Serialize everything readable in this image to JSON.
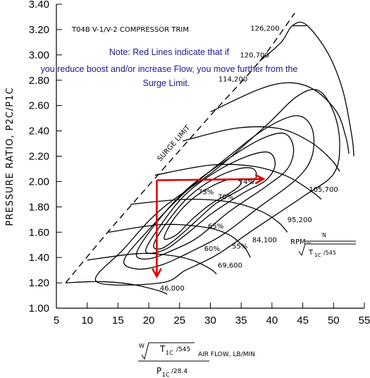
{
  "chart_data": {
    "type": "line",
    "title": "T04B V-1/V-2 COMPRESSOR TRIM",
    "note_lines": [
      "Note: Red Lines indicate that if",
      "you reduce boost and/or increase Flow, you move further from the",
      "Surge Limit."
    ],
    "ylabel": "PRESSURE RATIO, P2C/P1C",
    "xlabel": {
      "num_w": "W",
      "num_t": "T",
      "num_t_sub": "1C",
      "num_div": "/545",
      "units": "AIR FLOW, LB/MIN",
      "den_p": "P",
      "den_p_sub": "1C",
      "den_div": "/28.4"
    },
    "xlim": [
      5,
      55
    ],
    "ylim": [
      1.0,
      3.4
    ],
    "x_ticks": [
      "5",
      "10",
      "15",
      "20",
      "25",
      "30",
      "35",
      "40",
      "45",
      "50",
      "55"
    ],
    "y_ticks": [
      "1.00",
      "1.20",
      "1.40",
      "1.60",
      "1.80",
      "2.00",
      "2.20",
      "2.40",
      "2.60",
      "2.80",
      "3.00",
      "3.20",
      "3.40"
    ],
    "surge_limit": {
      "label": "SURGE LIMIT",
      "points": [
        [
          6.5,
          1.2
        ],
        [
          13,
          1.58
        ],
        [
          20,
          1.97
        ],
        [
          30,
          2.52
        ],
        [
          38,
          2.95
        ],
        [
          43.7,
          3.33
        ]
      ]
    },
    "speed_lines": [
      {
        "label": "46,000",
        "points": [
          [
            6.5,
            1.2
          ],
          [
            12,
            1.21
          ],
          [
            17,
            1.19
          ],
          [
            21.5,
            1.14
          ],
          [
            23,
            1.11
          ]
        ]
      },
      {
        "label": "69,600",
        "points": [
          [
            10,
            1.38
          ],
          [
            18,
            1.43
          ],
          [
            23,
            1.42
          ],
          [
            27,
            1.38
          ],
          [
            30,
            1.31
          ],
          [
            31,
            1.27
          ]
        ]
      },
      {
        "label": "84,100",
        "points": [
          [
            13.5,
            1.6
          ],
          [
            22,
            1.66
          ],
          [
            29,
            1.64
          ],
          [
            33,
            1.58
          ],
          [
            35.5,
            1.48
          ],
          [
            36.5,
            1.4
          ]
        ]
      },
      {
        "label": "95,200",
        "points": [
          [
            17,
            1.82
          ],
          [
            26,
            1.86
          ],
          [
            33,
            1.84
          ],
          [
            38,
            1.77
          ],
          [
            41,
            1.68
          ],
          [
            42.5,
            1.6
          ]
        ]
      },
      {
        "label": "105,700",
        "points": [
          [
            21,
            2.05
          ],
          [
            30,
            2.13
          ],
          [
            37,
            2.12
          ],
          [
            42.5,
            2.04
          ],
          [
            46.5,
            1.92
          ],
          [
            48,
            1.86
          ]
        ]
      },
      {
        "label": "114,200",
        "points": [
          [
            25.5,
            2.32
          ],
          [
            34,
            2.42
          ],
          [
            41,
            2.42
          ],
          [
            46,
            2.32
          ],
          [
            49.5,
            2.18
          ],
          [
            51,
            2.08
          ]
        ]
      },
      {
        "label": "120,700",
        "points": [
          [
            30,
            2.55
          ],
          [
            38,
            2.73
          ],
          [
            43,
            2.78
          ],
          [
            47,
            2.72
          ],
          [
            50.5,
            2.55
          ],
          [
            52,
            2.35
          ],
          [
            52.5,
            2.22
          ]
        ]
      },
      {
        "label": "126,200",
        "points": [
          [
            38,
            2.95
          ],
          [
            41.5,
            3.1
          ],
          [
            43.3,
            3.23
          ],
          [
            45.5,
            3.24
          ],
          [
            49,
            3.02
          ],
          [
            51.5,
            2.72
          ],
          [
            53,
            2.35
          ],
          [
            53.3,
            2.2
          ]
        ]
      }
    ],
    "efficiency_islands": [
      {
        "label": "55%",
        "points": [
          [
            11.5,
            1.21
          ],
          [
            16,
            1.47
          ],
          [
            22,
            1.78
          ],
          [
            31,
            2.1
          ],
          [
            39,
            2.44
          ],
          [
            44,
            2.67
          ],
          [
            47.5,
            2.72
          ],
          [
            50,
            2.55
          ],
          [
            51,
            2.3
          ],
          [
            50,
            2.06
          ],
          [
            45,
            1.88
          ],
          [
            37,
            1.62
          ],
          [
            31,
            1.42
          ],
          [
            26,
            1.3
          ],
          [
            22,
            1.2
          ]
        ]
      },
      {
        "label": "60%",
        "points": [
          [
            16,
            1.38
          ],
          [
            20,
            1.62
          ],
          [
            26,
            1.92
          ],
          [
            33,
            2.2
          ],
          [
            39,
            2.42
          ],
          [
            44,
            2.52
          ],
          [
            46.5,
            2.42
          ],
          [
            46.5,
            2.2
          ],
          [
            44,
            2.02
          ],
          [
            38,
            1.8
          ],
          [
            32,
            1.58
          ],
          [
            27,
            1.45
          ],
          [
            22,
            1.34
          ],
          [
            18,
            1.31
          ]
        ]
      },
      {
        "label": "65%",
        "points": [
          [
            18,
            1.43
          ],
          [
            21,
            1.66
          ],
          [
            26,
            1.93
          ],
          [
            32,
            2.15
          ],
          [
            38,
            2.33
          ],
          [
            42,
            2.38
          ],
          [
            43.5,
            2.26
          ],
          [
            42.5,
            2.1
          ],
          [
            39,
            1.96
          ],
          [
            33,
            1.76
          ],
          [
            28,
            1.56
          ],
          [
            24,
            1.46
          ],
          [
            20,
            1.39
          ]
        ]
      },
      {
        "label": "70%",
        "points": [
          [
            19.5,
            1.45
          ],
          [
            22,
            1.66
          ],
          [
            26,
            1.9
          ],
          [
            31,
            2.08
          ],
          [
            36,
            2.2
          ],
          [
            39.5,
            2.23
          ],
          [
            40.5,
            2.13
          ],
          [
            39,
            2.01
          ],
          [
            35,
            1.9
          ],
          [
            30,
            1.74
          ],
          [
            26,
            1.58
          ],
          [
            22.5,
            1.46
          ]
        ]
      },
      {
        "label": "73%",
        "points": [
          [
            20.8,
            1.5
          ],
          [
            23,
            1.68
          ],
          [
            26.5,
            1.88
          ],
          [
            30.5,
            2.02
          ],
          [
            34.5,
            2.1
          ],
          [
            37,
            2.1
          ],
          [
            37.3,
            2.02
          ],
          [
            35,
            1.94
          ],
          [
            31,
            1.83
          ],
          [
            27.5,
            1.68
          ],
          [
            24.5,
            1.55
          ],
          [
            22,
            1.47
          ]
        ]
      },
      {
        "label": "74%",
        "points": [
          [
            22.5,
            1.55
          ],
          [
            24,
            1.7
          ],
          [
            27,
            1.86
          ],
          [
            30.5,
            1.97
          ],
          [
            33.5,
            2.02
          ],
          [
            35,
            1.99
          ],
          [
            33.5,
            1.92
          ],
          [
            30,
            1.82
          ],
          [
            27,
            1.7
          ],
          [
            24.5,
            1.58
          ]
        ]
      }
    ],
    "red_lines": [
      {
        "points": [
          [
            21.3,
            2.01
          ],
          [
            38.6,
            2.02
          ]
        ],
        "arrow": "end"
      },
      {
        "points": [
          [
            21.3,
            2.01
          ],
          [
            21.3,
            1.25
          ]
        ],
        "arrow": "end"
      }
    ],
    "labels": [
      {
        "text": "126,200",
        "x": 36.5,
        "y": 3.19
      },
      {
        "text": "120,700",
        "x": 34.8,
        "y": 2.98
      },
      {
        "text": "114,200",
        "x": 31.3,
        "y": 2.79
      },
      {
        "text": "105,700",
        "x": 46.0,
        "y": 1.92
      },
      {
        "text": "95,200",
        "x": 42.5,
        "y": 1.68
      },
      {
        "text": "84,100",
        "x": 36.8,
        "y": 1.52
      },
      {
        "text": "69,600",
        "x": 31.2,
        "y": 1.32
      },
      {
        "text": "46,000",
        "x": 21.8,
        "y": 1.14
      },
      {
        "text": "55%",
        "x": 33.5,
        "y": 1.47
      },
      {
        "text": "60%",
        "x": 29.0,
        "y": 1.45
      },
      {
        "text": "65%",
        "x": 29.6,
        "y": 1.63
      },
      {
        "text": "70%",
        "x": 31.2,
        "y": 1.86
      },
      {
        "text": "73%",
        "x": 28.0,
        "y": 1.9
      },
      {
        "text": "74%",
        "x": 34.6,
        "y": 1.98
      }
    ],
    "rpm_formula": {
      "label": "RPM=",
      "num": "N",
      "sqrt_t": "T",
      "sqrt_sub": "1C",
      "sqrt_div": "/545"
    },
    "grid": false,
    "colors": {
      "curves": "#000000",
      "red_lines": "#e00000",
      "note": "#1a1a8c"
    }
  }
}
